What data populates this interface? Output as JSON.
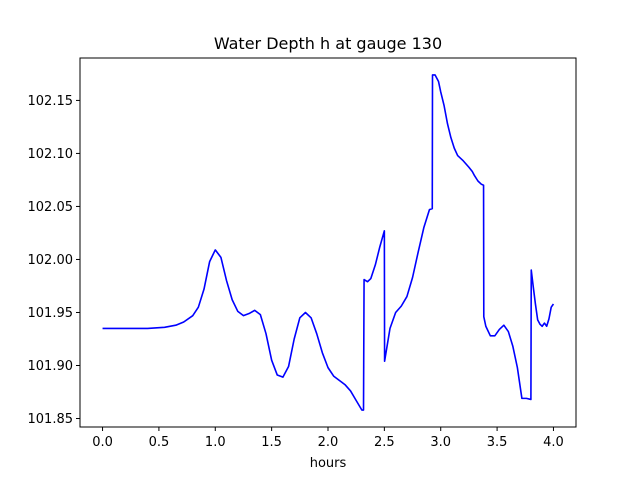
{
  "chart_data": {
    "type": "line",
    "title": "Water Depth h at gauge 130",
    "xlabel": "hours",
    "ylabel": "",
    "xlim": [
      -0.2,
      4.2
    ],
    "ylim": [
      101.842,
      102.19
    ],
    "xticks": [
      0.0,
      0.5,
      1.0,
      1.5,
      2.0,
      2.5,
      3.0,
      3.5,
      4.0
    ],
    "xtick_labels": [
      "0.0",
      "0.5",
      "1.0",
      "1.5",
      "2.0",
      "2.5",
      "3.0",
      "3.5",
      "4.0"
    ],
    "yticks": [
      101.85,
      101.9,
      101.95,
      102.0,
      102.05,
      102.1,
      102.15
    ],
    "ytick_labels": [
      "101.85",
      "101.90",
      "101.95",
      "102.00",
      "102.05",
      "102.10",
      "102.15"
    ],
    "grid": false,
    "series": [
      {
        "color": "#0000ff",
        "x": [
          0.0,
          0.2,
          0.4,
          0.55,
          0.65,
          0.72,
          0.8,
          0.85,
          0.9,
          0.95,
          1.0,
          1.05,
          1.1,
          1.15,
          1.2,
          1.25,
          1.3,
          1.35,
          1.4,
          1.45,
          1.5,
          1.55,
          1.6,
          1.65,
          1.7,
          1.75,
          1.8,
          1.85,
          1.9,
          1.95,
          2.0,
          2.05,
          2.1,
          2.15,
          2.2,
          2.25,
          2.3,
          2.315,
          2.32,
          2.35,
          2.38,
          2.42,
          2.46,
          2.5,
          2.502,
          2.55,
          2.6,
          2.65,
          2.7,
          2.75,
          2.8,
          2.85,
          2.9,
          2.925,
          2.927,
          2.95,
          2.98,
          3.0,
          3.03,
          3.06,
          3.09,
          3.12,
          3.15,
          3.2,
          3.25,
          3.28,
          3.3,
          3.33,
          3.36,
          3.38,
          3.382,
          3.4,
          3.44,
          3.48,
          3.52,
          3.56,
          3.6,
          3.64,
          3.68,
          3.72,
          3.76,
          3.8,
          3.803,
          3.82,
          3.84,
          3.86,
          3.88,
          3.9,
          3.92,
          3.94,
          3.96,
          3.98,
          4.0
        ],
        "y": [
          101.935,
          101.935,
          101.935,
          101.936,
          101.938,
          101.941,
          101.947,
          101.955,
          101.972,
          101.998,
          102.009,
          102.002,
          101.98,
          101.962,
          101.951,
          101.947,
          101.949,
          101.952,
          101.948,
          101.93,
          101.905,
          101.891,
          101.889,
          101.899,
          101.925,
          101.945,
          101.95,
          101.945,
          101.93,
          101.912,
          101.898,
          101.89,
          101.886,
          101.882,
          101.876,
          101.867,
          101.858,
          101.858,
          101.981,
          101.979,
          101.982,
          101.995,
          102.012,
          102.027,
          101.904,
          101.935,
          101.95,
          101.956,
          101.965,
          101.983,
          102.007,
          102.03,
          102.047,
          102.048,
          102.174,
          102.174,
          102.168,
          102.158,
          102.145,
          102.128,
          102.115,
          102.105,
          102.098,
          102.093,
          102.087,
          102.083,
          102.079,
          102.074,
          102.071,
          102.07,
          101.946,
          101.937,
          101.928,
          101.928,
          101.934,
          101.938,
          101.932,
          101.918,
          101.898,
          101.869,
          101.869,
          101.868,
          101.99,
          101.975,
          101.958,
          101.943,
          101.939,
          101.937,
          101.94,
          101.937,
          101.944,
          101.955,
          101.958
        ]
      }
    ]
  }
}
